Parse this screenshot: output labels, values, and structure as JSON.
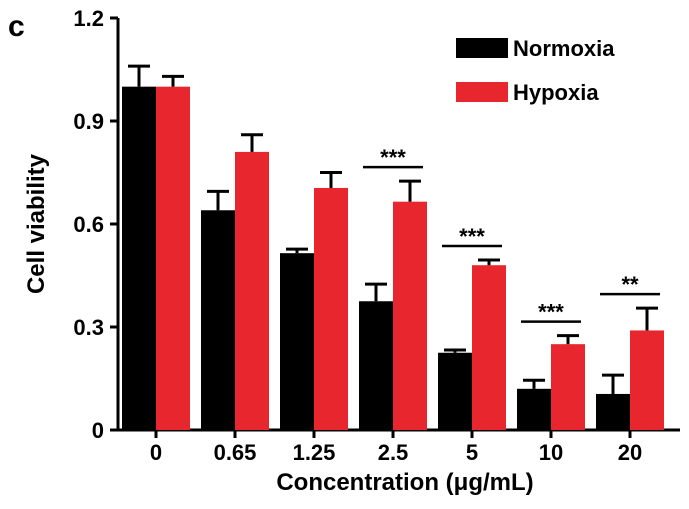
{
  "panel_label": "c",
  "chart_data": {
    "type": "bar",
    "title": "",
    "xlabel": "Concentration (μg/mL)",
    "ylabel": "Cell viability",
    "ylim": [
      0,
      1.2
    ],
    "yticks": [
      "0",
      "0.3",
      "0.6",
      "0.9",
      "1.2"
    ],
    "ytick_values": [
      0,
      0.3,
      0.6,
      0.9,
      1.2
    ],
    "categories": [
      "0",
      "0.65",
      "1.25",
      "2.5",
      "5",
      "10",
      "20"
    ],
    "series": [
      {
        "name": "Normoxia",
        "color": "#000000",
        "values": [
          1.0,
          0.64,
          0.515,
          0.375,
          0.225,
          0.12,
          0.105
        ],
        "errors": [
          0.06,
          0.055,
          0.012,
          0.05,
          0.008,
          0.025,
          0.055
        ]
      },
      {
        "name": "Hypoxia",
        "color": "#e8262d",
        "values": [
          1.0,
          0.81,
          0.705,
          0.665,
          0.48,
          0.25,
          0.29
        ],
        "errors": [
          0.03,
          0.05,
          0.045,
          0.06,
          0.015,
          0.025,
          0.065
        ]
      }
    ],
    "significance": [
      "",
      "",
      "",
      "***",
      "***",
      "***",
      "**"
    ],
    "legend_position": "top-right",
    "grid": false
  }
}
